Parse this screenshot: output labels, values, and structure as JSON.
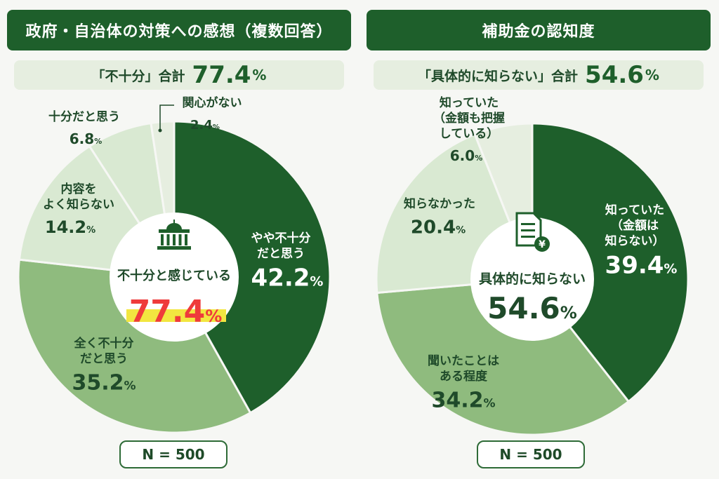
{
  "colors": {
    "dark": "#1e5f2b",
    "medium": "#8fbb7e",
    "light": "#d9e9d2",
    "lighter": "#e6eee0",
    "red": "#ef3b3b",
    "highlight": "#f2e640"
  },
  "left": {
    "title": "政府・自治体の対策への感想（複数回答）",
    "summary_label": "「不十分」合計",
    "summary_value": "77.4",
    "summary_unit": "%",
    "center_label": "不十分と感じている",
    "center_value": "77.4",
    "center_unit": "%",
    "center_icon": "government-building-icon",
    "n_label": "N = 500"
  },
  "right": {
    "title": "補助金の認知度",
    "summary_label": "「具体的に知らない」合計",
    "summary_value": "54.6",
    "summary_unit": "%",
    "center_label": "具体的に知らない",
    "center_value": "54.6",
    "center_unit": "%",
    "center_icon": "yen-document-icon",
    "n_label": "N = 500"
  },
  "chart_data": [
    {
      "type": "pie",
      "title": "政府・自治体の対策への感想（複数回答）",
      "unit": "%",
      "slices": [
        {
          "label": "やや不十分だと思う",
          "value": 42.2,
          "color": "#1e5f2b"
        },
        {
          "label": "全く不十分だと思う",
          "value": 35.2,
          "color": "#8fbb7e"
        },
        {
          "label": "内容をよく知らない",
          "value": 14.2,
          "color": "#d9e9d2"
        },
        {
          "label": "十分だと思う",
          "value": 6.8,
          "color": "#d9e9d2"
        },
        {
          "label": "関心がない",
          "value": 2.4,
          "color": "#e6eee0"
        }
      ]
    },
    {
      "type": "pie",
      "title": "補助金の認知度",
      "unit": "%",
      "slices": [
        {
          "label": "知っていた（金額は知らない）",
          "value": 39.4,
          "color": "#1e5f2b"
        },
        {
          "label": "聞いたことはある程度",
          "value": 34.2,
          "color": "#8fbb7e"
        },
        {
          "label": "知らなかった",
          "value": 20.4,
          "color": "#d9e9d2"
        },
        {
          "label": "知っていた（金額も把握している）",
          "value": 6.0,
          "color": "#e6eee0"
        }
      ]
    }
  ],
  "slice_label_lines": [
    [
      [
        "やや不十分",
        "だと思う"
      ],
      [
        "全く不十分",
        "だと思う"
      ],
      [
        "内容を",
        "よく知らない"
      ],
      [
        "十分だと思う"
      ],
      [
        "関心がない"
      ]
    ],
    [
      [
        "知っていた",
        "（金額は",
        "知らない）"
      ],
      [
        "聞いたことは",
        "ある程度"
      ],
      [
        "知らなかった"
      ],
      [
        "知っていた",
        "（金額も把握",
        "している）"
      ]
    ]
  ]
}
